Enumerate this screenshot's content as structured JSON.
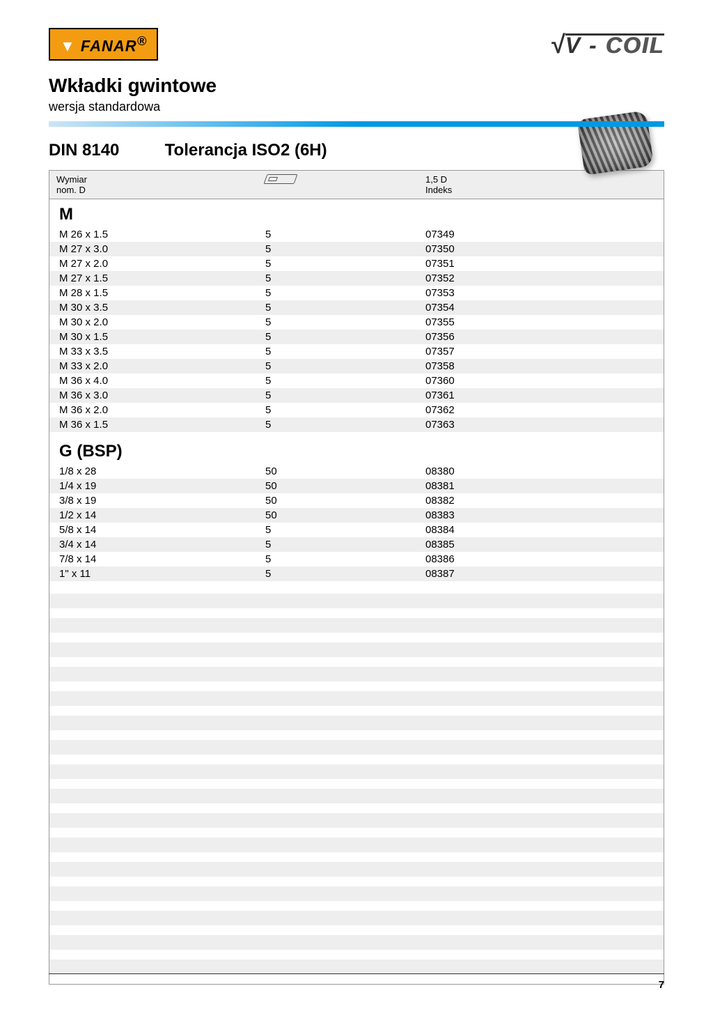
{
  "logos": {
    "fanar": "FANAR",
    "vcoil_prefix": "V",
    "vcoil_suffix": "COIL"
  },
  "title": "Wkładki gwintowe",
  "subtitle": "wersja standardowa",
  "spec": {
    "din": "DIN 8140",
    "tolerance": "Tolerancja ISO2 (6H)"
  },
  "table_header": {
    "col1_line1": "Wymiar",
    "col1_line2": "nom. D",
    "col3_line1": "1,5 D",
    "col3_line2": "Indeks"
  },
  "sections": [
    {
      "label": "M",
      "rows": [
        {
          "dim": "M 26 x 1.5",
          "qty": "5",
          "index": "07349"
        },
        {
          "dim": "M 27 x 3.0",
          "qty": "5",
          "index": "07350"
        },
        {
          "dim": "M 27 x 2.0",
          "qty": "5",
          "index": "07351"
        },
        {
          "dim": "M 27 x 1.5",
          "qty": "5",
          "index": "07352"
        },
        {
          "dim": "M 28 x 1.5",
          "qty": "5",
          "index": "07353"
        },
        {
          "dim": "M 30 x 3.5",
          "qty": "5",
          "index": "07354"
        },
        {
          "dim": "M 30 x 2.0",
          "qty": "5",
          "index": "07355"
        },
        {
          "dim": "M 30 x 1.5",
          "qty": "5",
          "index": "07356"
        },
        {
          "dim": "M 33 x 3.5",
          "qty": "5",
          "index": "07357"
        },
        {
          "dim": "M 33 x 2.0",
          "qty": "5",
          "index": "07358"
        },
        {
          "dim": "M 36 x 4.0",
          "qty": "5",
          "index": "07360"
        },
        {
          "dim": "M 36 x 3.0",
          "qty": "5",
          "index": "07361"
        },
        {
          "dim": "M 36 x 2.0",
          "qty": "5",
          "index": "07362"
        },
        {
          "dim": "M 36 x 1.5",
          "qty": "5",
          "index": "07363"
        }
      ]
    },
    {
      "label": "G (BSP)",
      "rows": [
        {
          "dim": "1/8 x 28",
          "qty": "50",
          "index": "08380"
        },
        {
          "dim": "1/4 x 19",
          "qty": "50",
          "index": "08381"
        },
        {
          "dim": "3/8 x 19",
          "qty": "50",
          "index": "08382"
        },
        {
          "dim": "1/2 x 14",
          "qty": "50",
          "index": "08383"
        },
        {
          "dim": "5/8 x 14",
          "qty": "5",
          "index": "08384"
        },
        {
          "dim": "3/4 x 14",
          "qty": "5",
          "index": "08385"
        },
        {
          "dim": "7/8 x 14",
          "qty": "5",
          "index": "08386"
        },
        {
          "dim": "  1\" x 11",
          "qty": "5",
          "index": "08387"
        }
      ]
    }
  ],
  "empty_stripe_count": 16,
  "page_number": "7",
  "colors": {
    "accent_blue": "#0099e5",
    "stripe_gray": "#eeeeee",
    "fanar_bg": "#f39c12",
    "text": "#000000"
  },
  "typography": {
    "title_fontsize": 28,
    "subtitle_fontsize": 18,
    "h2_fontsize": 24,
    "row_fontsize": 15,
    "header_fontsize": 13
  }
}
